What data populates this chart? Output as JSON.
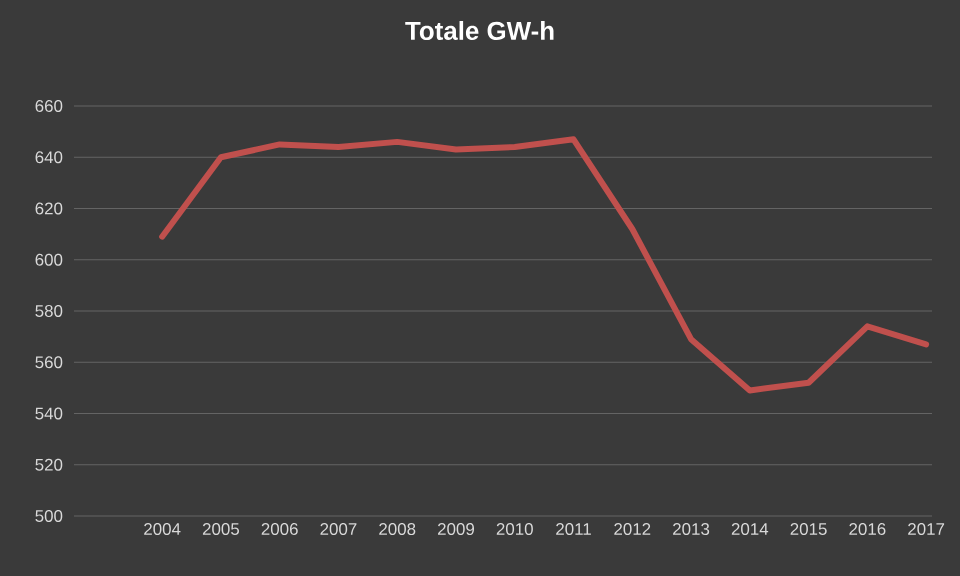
{
  "chart_data": {
    "type": "line",
    "title": "Totale  GW-h",
    "categories": [
      "2004",
      "2005",
      "2006",
      "2007",
      "2008",
      "2009",
      "2010",
      "2011",
      "2012",
      "2013",
      "2014",
      "2015",
      "2016",
      "2017"
    ],
    "series": [
      {
        "color": "#c0504d",
        "values": [
          609,
          640,
          645,
          644,
          646,
          643,
          644,
          647,
          612,
          569,
          549,
          552,
          574,
          567
        ]
      }
    ],
    "ylim": [
      500,
      660
    ],
    "yticks": [
      500,
      520,
      540,
      560,
      580,
      600,
      620,
      640,
      660
    ],
    "grid": "y",
    "legend": false,
    "marker": "none",
    "line_style": "solid"
  }
}
